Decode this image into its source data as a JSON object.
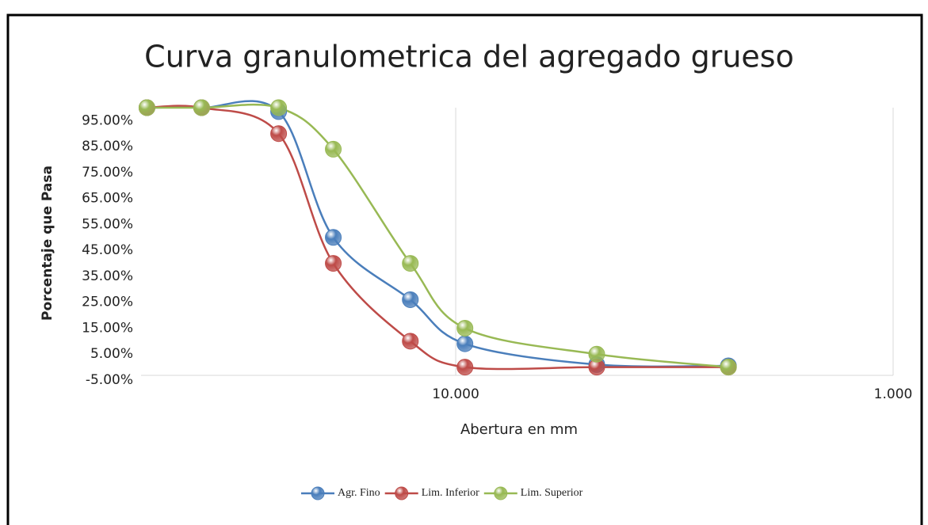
{
  "chart_data": {
    "type": "line",
    "title": "Curva granulometrica del agregado grueso",
    "x_label": "Abertura en mm",
    "y_label": "Porcentaje que Pasa",
    "x": [
      50.8,
      38.1,
      25.4,
      19.05,
      12.7,
      9.525,
      4.76,
      2.38
    ],
    "series": [
      {
        "name": "Agr. Fino",
        "color": "#4a7ebb",
        "values": [
          100,
          100,
          98.5,
          50,
          26,
          9,
          1,
          0.5
        ]
      },
      {
        "name": "Lim. Inferior",
        "color": "#be4b48",
        "values": [
          100,
          100,
          90,
          40,
          10,
          0,
          0,
          0
        ]
      },
      {
        "name": "Lim. Superior",
        "color": "#98b954",
        "values": [
          100,
          100,
          100,
          84,
          40,
          15,
          5,
          0
        ]
      }
    ],
    "xscale": "log",
    "xlim": [
      52.4,
      1
    ],
    "xticks": [
      {
        "value": 10,
        "label": "10.000"
      },
      {
        "value": 1,
        "label": "1.000"
      }
    ],
    "ylim": [
      -5,
      100
    ],
    "yticks": [
      {
        "value": 95,
        "label": "95.00%"
      },
      {
        "value": 85,
        "label": "85.00%"
      },
      {
        "value": 75,
        "label": "75.00%"
      },
      {
        "value": 65,
        "label": "65.00%"
      },
      {
        "value": 55,
        "label": "55.00%"
      },
      {
        "value": 45,
        "label": "45.00%"
      },
      {
        "value": 35,
        "label": "35.00%"
      },
      {
        "value": 25,
        "label": "25.00%"
      },
      {
        "value": 15,
        "label": "15.00%"
      },
      {
        "value": 5,
        "label": "5.00%"
      },
      {
        "value": -5,
        "label": "-5.00%"
      }
    ],
    "grid": "x",
    "legend": "bottom"
  }
}
